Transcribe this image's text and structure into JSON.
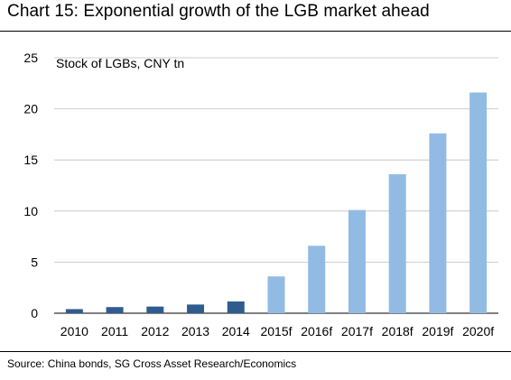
{
  "title": "Chart 15: Exponential growth of the LGB market ahead",
  "source": "Source: China bonds, SG Cross Asset Research/Economics",
  "chart_data": {
    "type": "bar",
    "title": "Chart 15: Exponential growth of the LGB market ahead",
    "ylabel": "Stock of LGBs, CNY tn",
    "xlabel": "",
    "categories": [
      "2010",
      "2011",
      "2012",
      "2013",
      "2014",
      "2015f",
      "2016f",
      "2017f",
      "2018f",
      "2019f",
      "2020f"
    ],
    "values": [
      0.4,
      0.6,
      0.65,
      0.85,
      1.15,
      3.6,
      6.6,
      10.1,
      13.6,
      17.6,
      21.6
    ],
    "kind": [
      "actual",
      "actual",
      "actual",
      "actual",
      "actual",
      "forecast",
      "forecast",
      "forecast",
      "forecast",
      "forecast",
      "forecast"
    ],
    "ylim": [
      0,
      25
    ],
    "yticks": [
      0,
      5,
      10,
      15,
      20,
      25
    ],
    "grid": true,
    "colors": {
      "actual": "#2e5c8f",
      "forecast": "#92bbe3",
      "grid": "#bfbfbf"
    }
  }
}
